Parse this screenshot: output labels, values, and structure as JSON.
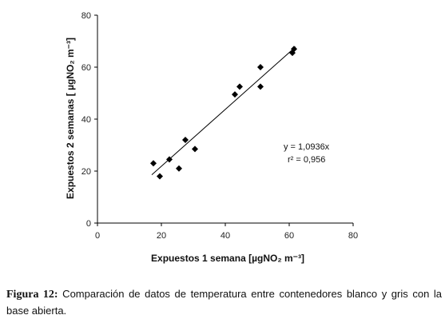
{
  "chart_data": {
    "type": "scatter",
    "xlabel": "Expuestos 1 semana [µgNO₂ m⁻³]",
    "ylabel": "Expuestos 2 semanas [ µgNO₂ m⁻³]",
    "xlim": [
      0,
      80
    ],
    "ylim": [
      0,
      80
    ],
    "x_ticks": [
      0,
      20,
      40,
      60,
      80
    ],
    "y_ticks": [
      0,
      20,
      40,
      60,
      80
    ],
    "grid": false,
    "points": [
      {
        "x": 17.5,
        "y": 23
      },
      {
        "x": 19.5,
        "y": 18
      },
      {
        "x": 22.5,
        "y": 24.5
      },
      {
        "x": 25.5,
        "y": 21
      },
      {
        "x": 27.5,
        "y": 32
      },
      {
        "x": 30.5,
        "y": 28.5
      },
      {
        "x": 43,
        "y": 49.5
      },
      {
        "x": 44.5,
        "y": 52.5
      },
      {
        "x": 51,
        "y": 60
      },
      {
        "x": 51,
        "y": 52.5
      },
      {
        "x": 61,
        "y": 65.5
      },
      {
        "x": 61.5,
        "y": 67
      }
    ],
    "trendline": {
      "x_start": 17,
      "x_end": 62
    },
    "annotation": {
      "equation": "y = 1,0936x",
      "r2": "r² = 0,956"
    }
  },
  "caption": {
    "label": "Figura 12:",
    "text": " Comparación de datos de temperatura entre contenedores blanco y gris con la base abierta."
  }
}
